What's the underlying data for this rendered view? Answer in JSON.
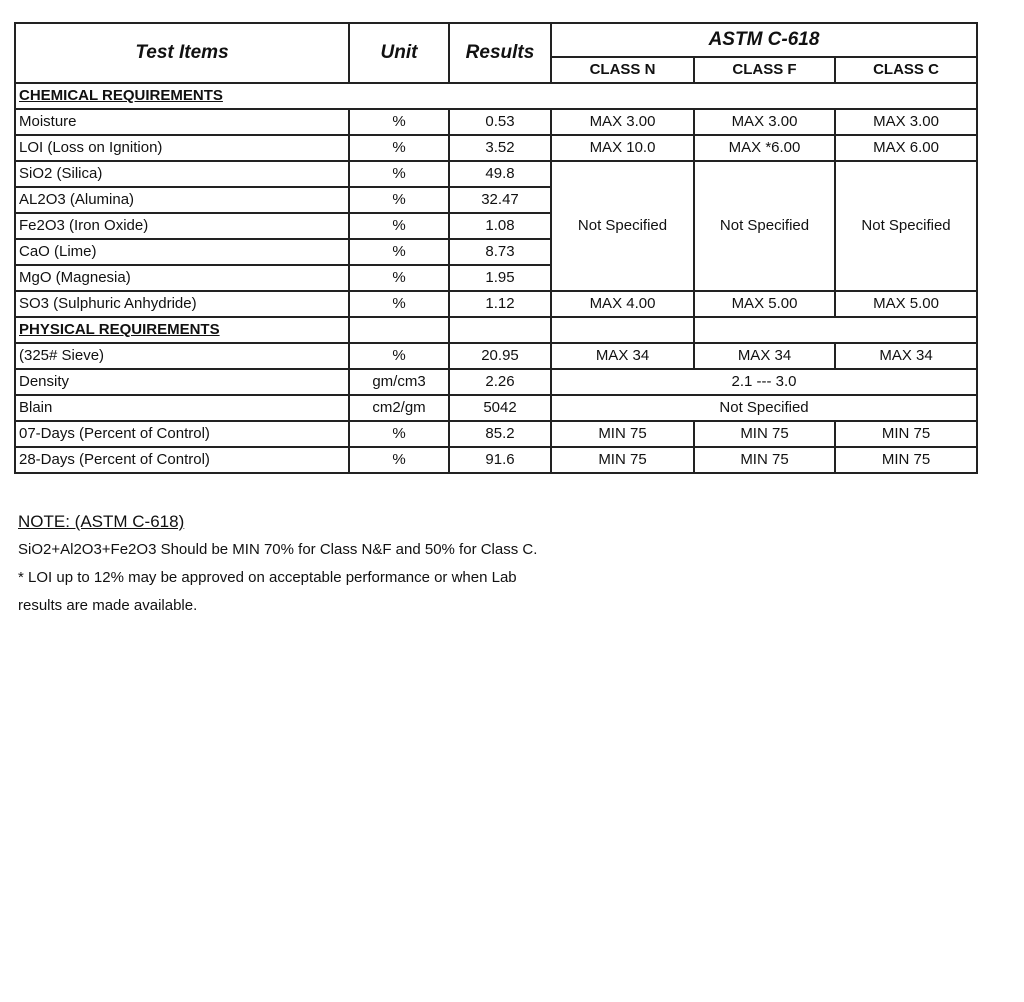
{
  "header": {
    "test_items": "Test Items",
    "unit": "Unit",
    "results": "Results",
    "standard": "ASTM C-618",
    "classes": [
      "CLASS N",
      "CLASS F",
      "CLASS C"
    ]
  },
  "chemical": {
    "title": "CHEMICAL REQUIREMENTS",
    "rows": [
      {
        "item": "Moisture",
        "unit": "%",
        "result": "0.53",
        "n": "MAX  3.00",
        "f": "MAX  3.00",
        "c": "MAX  3.00"
      },
      {
        "item": "LOI (Loss on Ignition)",
        "unit": "%",
        "result": "3.52",
        "n": "MAX  10.0",
        "f": "MAX *6.00",
        "c": "MAX  6.00"
      },
      {
        "item": "SiO2 (Silica)",
        "unit": "%",
        "result": "49.8"
      },
      {
        "item": "AL2O3 (Alumina)",
        "unit": "%",
        "result": "32.47"
      },
      {
        "item": "Fe2O3 (Iron Oxide)",
        "unit": "%",
        "result": "1.08"
      },
      {
        "item": "CaO (Lime)",
        "unit": "%",
        "result": "8.73"
      },
      {
        "item": "MgO (Magnesia)",
        "unit": "%",
        "result": "1.95"
      },
      {
        "item": "SO3 (Sulphuric Anhydride)",
        "unit": "%",
        "result": "1.12",
        "n": "MAX  4.00",
        "f": "MAX  5.00",
        "c": "MAX  5.00"
      }
    ],
    "not_specified": "Not Specified"
  },
  "physical": {
    "title": "PHYSICAL REQUIREMENTS",
    "rows": [
      {
        "item": "(325# Sieve)",
        "unit": "%",
        "result": "20.95",
        "n": "MAX  34",
        "f": "MAX  34",
        "c": "MAX  34"
      },
      {
        "item": "Density",
        "unit": "gm/cm3",
        "result": "2.26",
        "all": "2.1  ---  3.0"
      },
      {
        "item": "Blain",
        "unit": "cm2/gm",
        "result": "5042",
        "all": "Not Specified"
      },
      {
        "item": "07-Days (Percent of Control)",
        "unit": "%",
        "result": "85.2",
        "n": "MIN  75",
        "f": "MIN  75",
        "c": "MIN  75"
      },
      {
        "item": "28-Days (Percent of Control)",
        "unit": "%",
        "result": "91.6",
        "n": "MIN  75",
        "f": "MIN  75",
        "c": "MIN  75"
      }
    ]
  },
  "notes": {
    "title": "NOTE: (ASTM C-618)",
    "lines": [
      "SiO2+Al2O3+Fe2O3 Should be MIN 70% for Class N&F and 50% for Class C.",
      "* LOI up to 12% may be approved on acceptable performance or  when Lab",
      "results are made available."
    ]
  }
}
